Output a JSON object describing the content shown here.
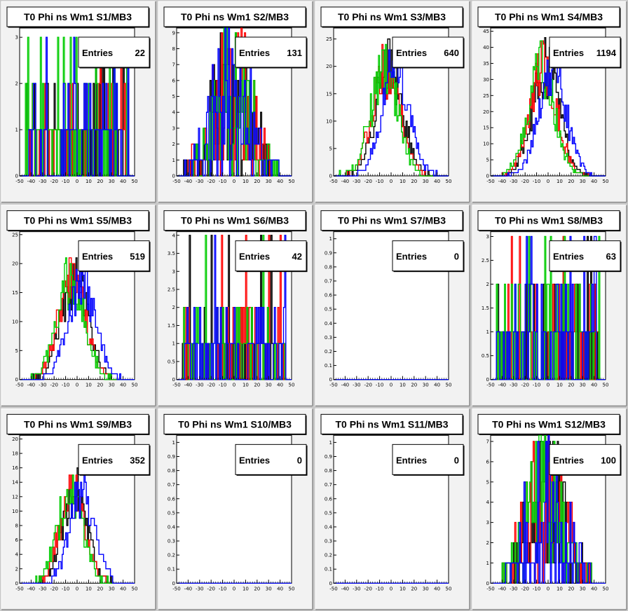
{
  "canvas": {
    "background": "#c8c8c8",
    "pad_fill": "#f2f2f2",
    "frame_fill": "#ffffff"
  },
  "series_colors": [
    "#000000",
    "#ff0000",
    "#00cc00",
    "#0000ff"
  ],
  "x_axis": {
    "min": -50,
    "max": 50,
    "ticks": [
      -50,
      -40,
      -30,
      -20,
      -10,
      0,
      10,
      20,
      30,
      40,
      50
    ]
  },
  "chart_data": [
    {
      "type": "bar",
      "title": "T0 Phi ns Wm1 S1/MB3",
      "entries_label": "Entries",
      "entries": "22",
      "xlim": [
        -50,
        50
      ],
      "ylim": [
        0,
        3.2
      ],
      "yticks": [
        0,
        1,
        2,
        3
      ],
      "profile": "sparse",
      "seed": 1
    },
    {
      "type": "bar",
      "title": "T0 Phi ns Wm1 S2/MB3",
      "entries_label": "Entries",
      "entries": "131",
      "xlim": [
        -50,
        50
      ],
      "ylim": [
        0,
        9.3
      ],
      "yticks": [
        0,
        1,
        2,
        3,
        4,
        5,
        6,
        7,
        8,
        9
      ],
      "profile": "wide",
      "seed": 2
    },
    {
      "type": "bar",
      "title": "T0 Phi ns Wm1 S3/MB3",
      "entries_label": "Entries",
      "entries": "640",
      "xlim": [
        -50,
        50
      ],
      "ylim": [
        0,
        27
      ],
      "yticks": [
        0,
        5,
        10,
        15,
        20,
        25
      ],
      "profile": "gauss",
      "peak": 22,
      "sigma": 12,
      "seed": 3
    },
    {
      "type": "bar",
      "title": "T0 Phi ns Wm1 S4/MB3",
      "entries_label": "Entries",
      "entries": "1194",
      "xlim": [
        -50,
        50
      ],
      "ylim": [
        0,
        46
      ],
      "yticks": [
        0,
        5,
        10,
        15,
        20,
        25,
        30,
        35,
        40,
        45
      ],
      "profile": "gauss",
      "peak": 37,
      "sigma": 12,
      "seed": 4
    },
    {
      "type": "bar",
      "title": "T0 Phi ns Wm1 S5/MB3",
      "entries_label": "Entries",
      "entries": "519",
      "xlim": [
        -50,
        50
      ],
      "ylim": [
        0,
        25.5
      ],
      "yticks": [
        0,
        5,
        10,
        15,
        20,
        25
      ],
      "profile": "gauss",
      "peak": 19,
      "sigma": 12,
      "seed": 5
    },
    {
      "type": "bar",
      "title": "T0 Phi ns Wm1 S6/MB3",
      "entries_label": "Entries",
      "entries": "42",
      "xlim": [
        -50,
        50
      ],
      "ylim": [
        0,
        4.1
      ],
      "yticks": [
        0,
        0.5,
        1,
        1.5,
        2,
        2.5,
        3,
        3.5,
        4
      ],
      "profile": "sparse",
      "seed": 6
    },
    {
      "type": "bar",
      "title": "T0 Phi ns Wm1 S7/MB3",
      "entries_label": "Entries",
      "entries": "0",
      "xlim": [
        -50,
        50
      ],
      "ylim": [
        0,
        1.05
      ],
      "yticks": [
        0,
        0.1,
        0.2,
        0.3,
        0.4,
        0.5,
        0.6,
        0.7,
        0.8,
        0.9,
        1
      ],
      "profile": "empty",
      "seed": 7
    },
    {
      "type": "bar",
      "title": "T0 Phi ns Wm1 S8/MB3",
      "entries_label": "Entries",
      "entries": "63",
      "xlim": [
        -50,
        50
      ],
      "ylim": [
        0,
        3.1
      ],
      "yticks": [
        0,
        0.5,
        1,
        1.5,
        2,
        2.5,
        3
      ],
      "profile": "sparse",
      "seed": 8
    },
    {
      "type": "bar",
      "title": "T0 Phi ns Wm1 S9/MB3",
      "entries_label": "Entries",
      "entries": "352",
      "xlim": [
        -50,
        50
      ],
      "ylim": [
        0,
        20.5
      ],
      "yticks": [
        0,
        2,
        4,
        6,
        8,
        10,
        12,
        14,
        16,
        18,
        20
      ],
      "profile": "gauss",
      "peak": 14,
      "sigma": 11,
      "seed": 9
    },
    {
      "type": "bar",
      "title": "T0 Phi ns Wm1 S10/MB3",
      "entries_label": "Entries",
      "entries": "0",
      "xlim": [
        -50,
        50
      ],
      "ylim": [
        0,
        1.05
      ],
      "yticks": [
        0,
        0.1,
        0.2,
        0.3,
        0.4,
        0.5,
        0.6,
        0.7,
        0.8,
        0.9,
        1
      ],
      "profile": "empty",
      "seed": 10
    },
    {
      "type": "bar",
      "title": "T0 Phi ns Wm1 S11/MB3",
      "entries_label": "Entries",
      "entries": "0",
      "xlim": [
        -50,
        50
      ],
      "ylim": [
        0,
        1.05
      ],
      "yticks": [
        0,
        0.1,
        0.2,
        0.3,
        0.4,
        0.5,
        0.6,
        0.7,
        0.8,
        0.9,
        1
      ],
      "profile": "empty",
      "seed": 11
    },
    {
      "type": "bar",
      "title": "T0 Phi ns Wm1 S12/MB3",
      "entries_label": "Entries",
      "entries": "100",
      "xlim": [
        -50,
        50
      ],
      "ylim": [
        0,
        7.3
      ],
      "yticks": [
        0,
        1,
        2,
        3,
        4,
        5,
        6,
        7
      ],
      "profile": "wide",
      "seed": 12
    }
  ]
}
